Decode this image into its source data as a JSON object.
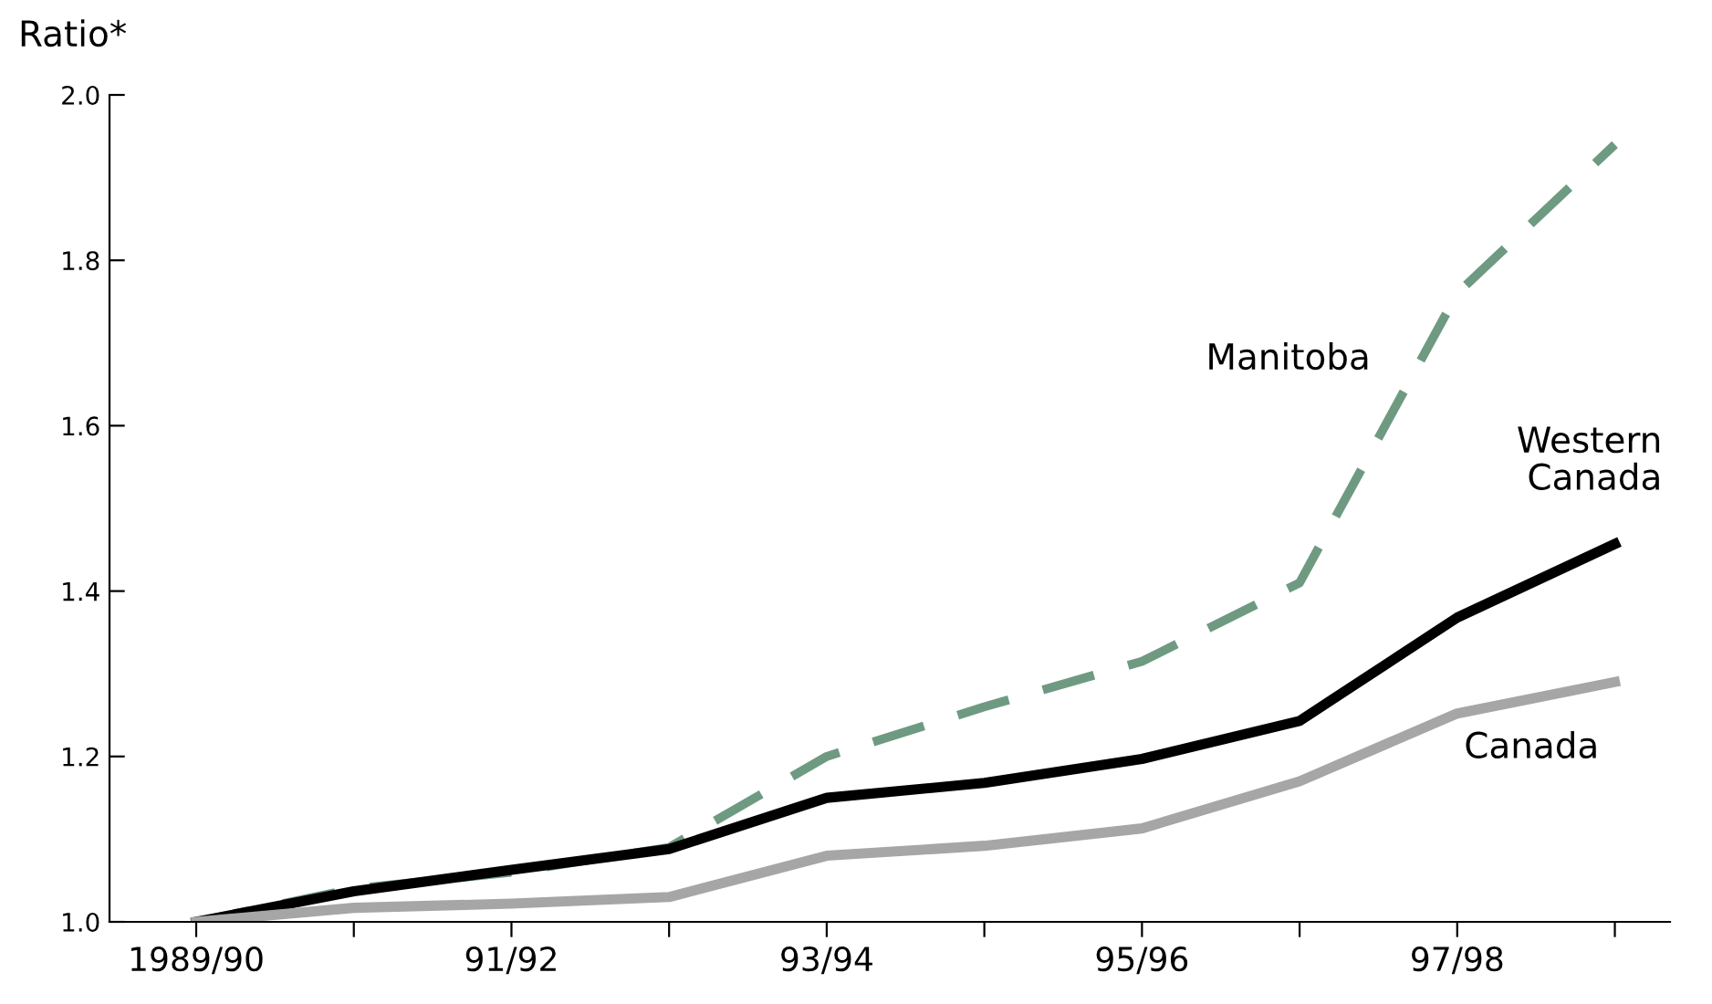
{
  "chart_data": {
    "type": "line",
    "ylabel": "Ratio*",
    "categories": [
      "1989/90",
      null,
      "91/92",
      null,
      "93/94",
      null,
      "95/96",
      null,
      "97/98",
      null
    ],
    "series": [
      {
        "name": "Manitoba",
        "color": "#6f9a82",
        "line_style": "dashed",
        "values": [
          1.0,
          1.04,
          1.06,
          1.09,
          1.2,
          1.26,
          1.315,
          1.41,
          1.76,
          1.94
        ]
      },
      {
        "name": "Western Canada",
        "color": "#000000",
        "line_style": "solid",
        "values": [
          1.0,
          1.037,
          1.063,
          1.088,
          1.15,
          1.168,
          1.197,
          1.243,
          1.368,
          1.457
        ]
      },
      {
        "name": "Canada",
        "color": "#a6a6a6",
        "line_style": "solid",
        "values": [
          1.0,
          1.017,
          1.022,
          1.03,
          1.08,
          1.092,
          1.113,
          1.17,
          1.252,
          1.29
        ]
      }
    ],
    "ylim": [
      1.0,
      2.0
    ],
    "yticks": [
      {
        "value": 1.0,
        "label": "1.0"
      },
      {
        "value": 1.2,
        "label": "1.2"
      },
      {
        "value": 1.4,
        "label": "1.4"
      },
      {
        "value": 1.6,
        "label": "1.6"
      },
      {
        "value": 1.8,
        "label": "1.8"
      },
      {
        "value": 2.0,
        "label": "2.0"
      }
    ],
    "grid": false,
    "legend": false,
    "marker": "none"
  }
}
